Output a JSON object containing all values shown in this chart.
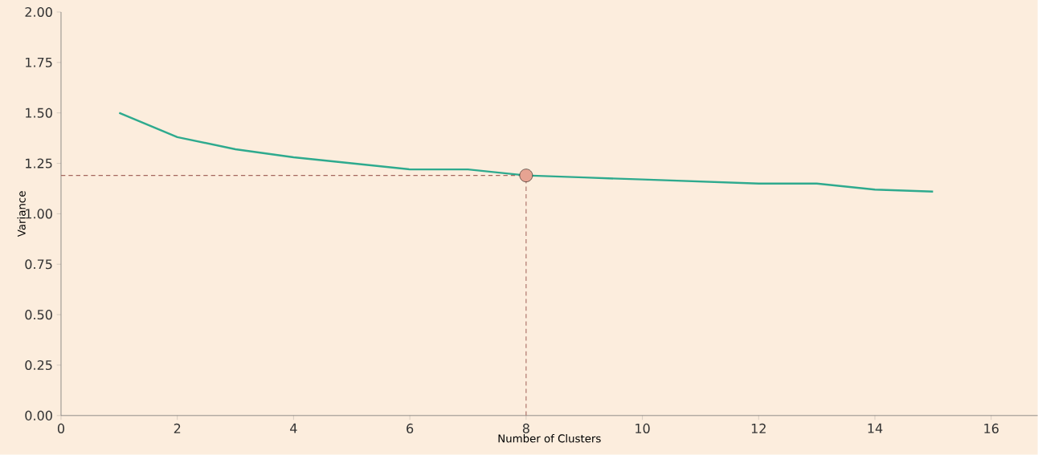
{
  "chart_data": {
    "type": "line",
    "xlabel": "Number of Clusters",
    "ylabel": "Variance",
    "series": [
      {
        "color": "#2eaa8e",
        "x": [
          1,
          2,
          3,
          4,
          5,
          6,
          7,
          8,
          9,
          10,
          11,
          12,
          13,
          14,
          15
        ],
        "values": [
          1.5,
          1.38,
          1.32,
          1.28,
          1.25,
          1.22,
          1.22,
          1.19,
          1.18,
          1.17,
          1.16,
          1.15,
          1.15,
          1.12,
          1.11
        ]
      },
      {
        "type": "scatter",
        "color": "#e6a392",
        "x": [
          8
        ],
        "values": [
          1.19
        ]
      }
    ],
    "ref_lines": [
      {
        "axis": "y",
        "value": 1.19,
        "color": "#a5675e",
        "line_style": "dashed"
      },
      {
        "axis": "x",
        "value": 8,
        "color": "#a5675e",
        "line_style": "dashed"
      }
    ],
    "xlim": [
      0,
      16.8
    ],
    "ylim": [
      0,
      2
    ],
    "xticks": [
      0,
      2,
      4,
      6,
      8,
      10,
      12,
      14,
      16
    ],
    "yticks": [
      {
        "value": 0,
        "label": "0.00"
      },
      {
        "value": 0.25,
        "label": "0.25"
      },
      {
        "value": 0.5,
        "label": "0.50"
      },
      {
        "value": 0.75,
        "label": "0.75"
      },
      {
        "value": 1,
        "label": "1.00"
      },
      {
        "value": 1.25,
        "label": "1.25"
      },
      {
        "value": 1.5,
        "label": "1.50"
      },
      {
        "value": 1.75,
        "label": "1.75"
      },
      {
        "value": 2,
        "label": "2.00"
      }
    ],
    "grid": false,
    "legend": false
  }
}
